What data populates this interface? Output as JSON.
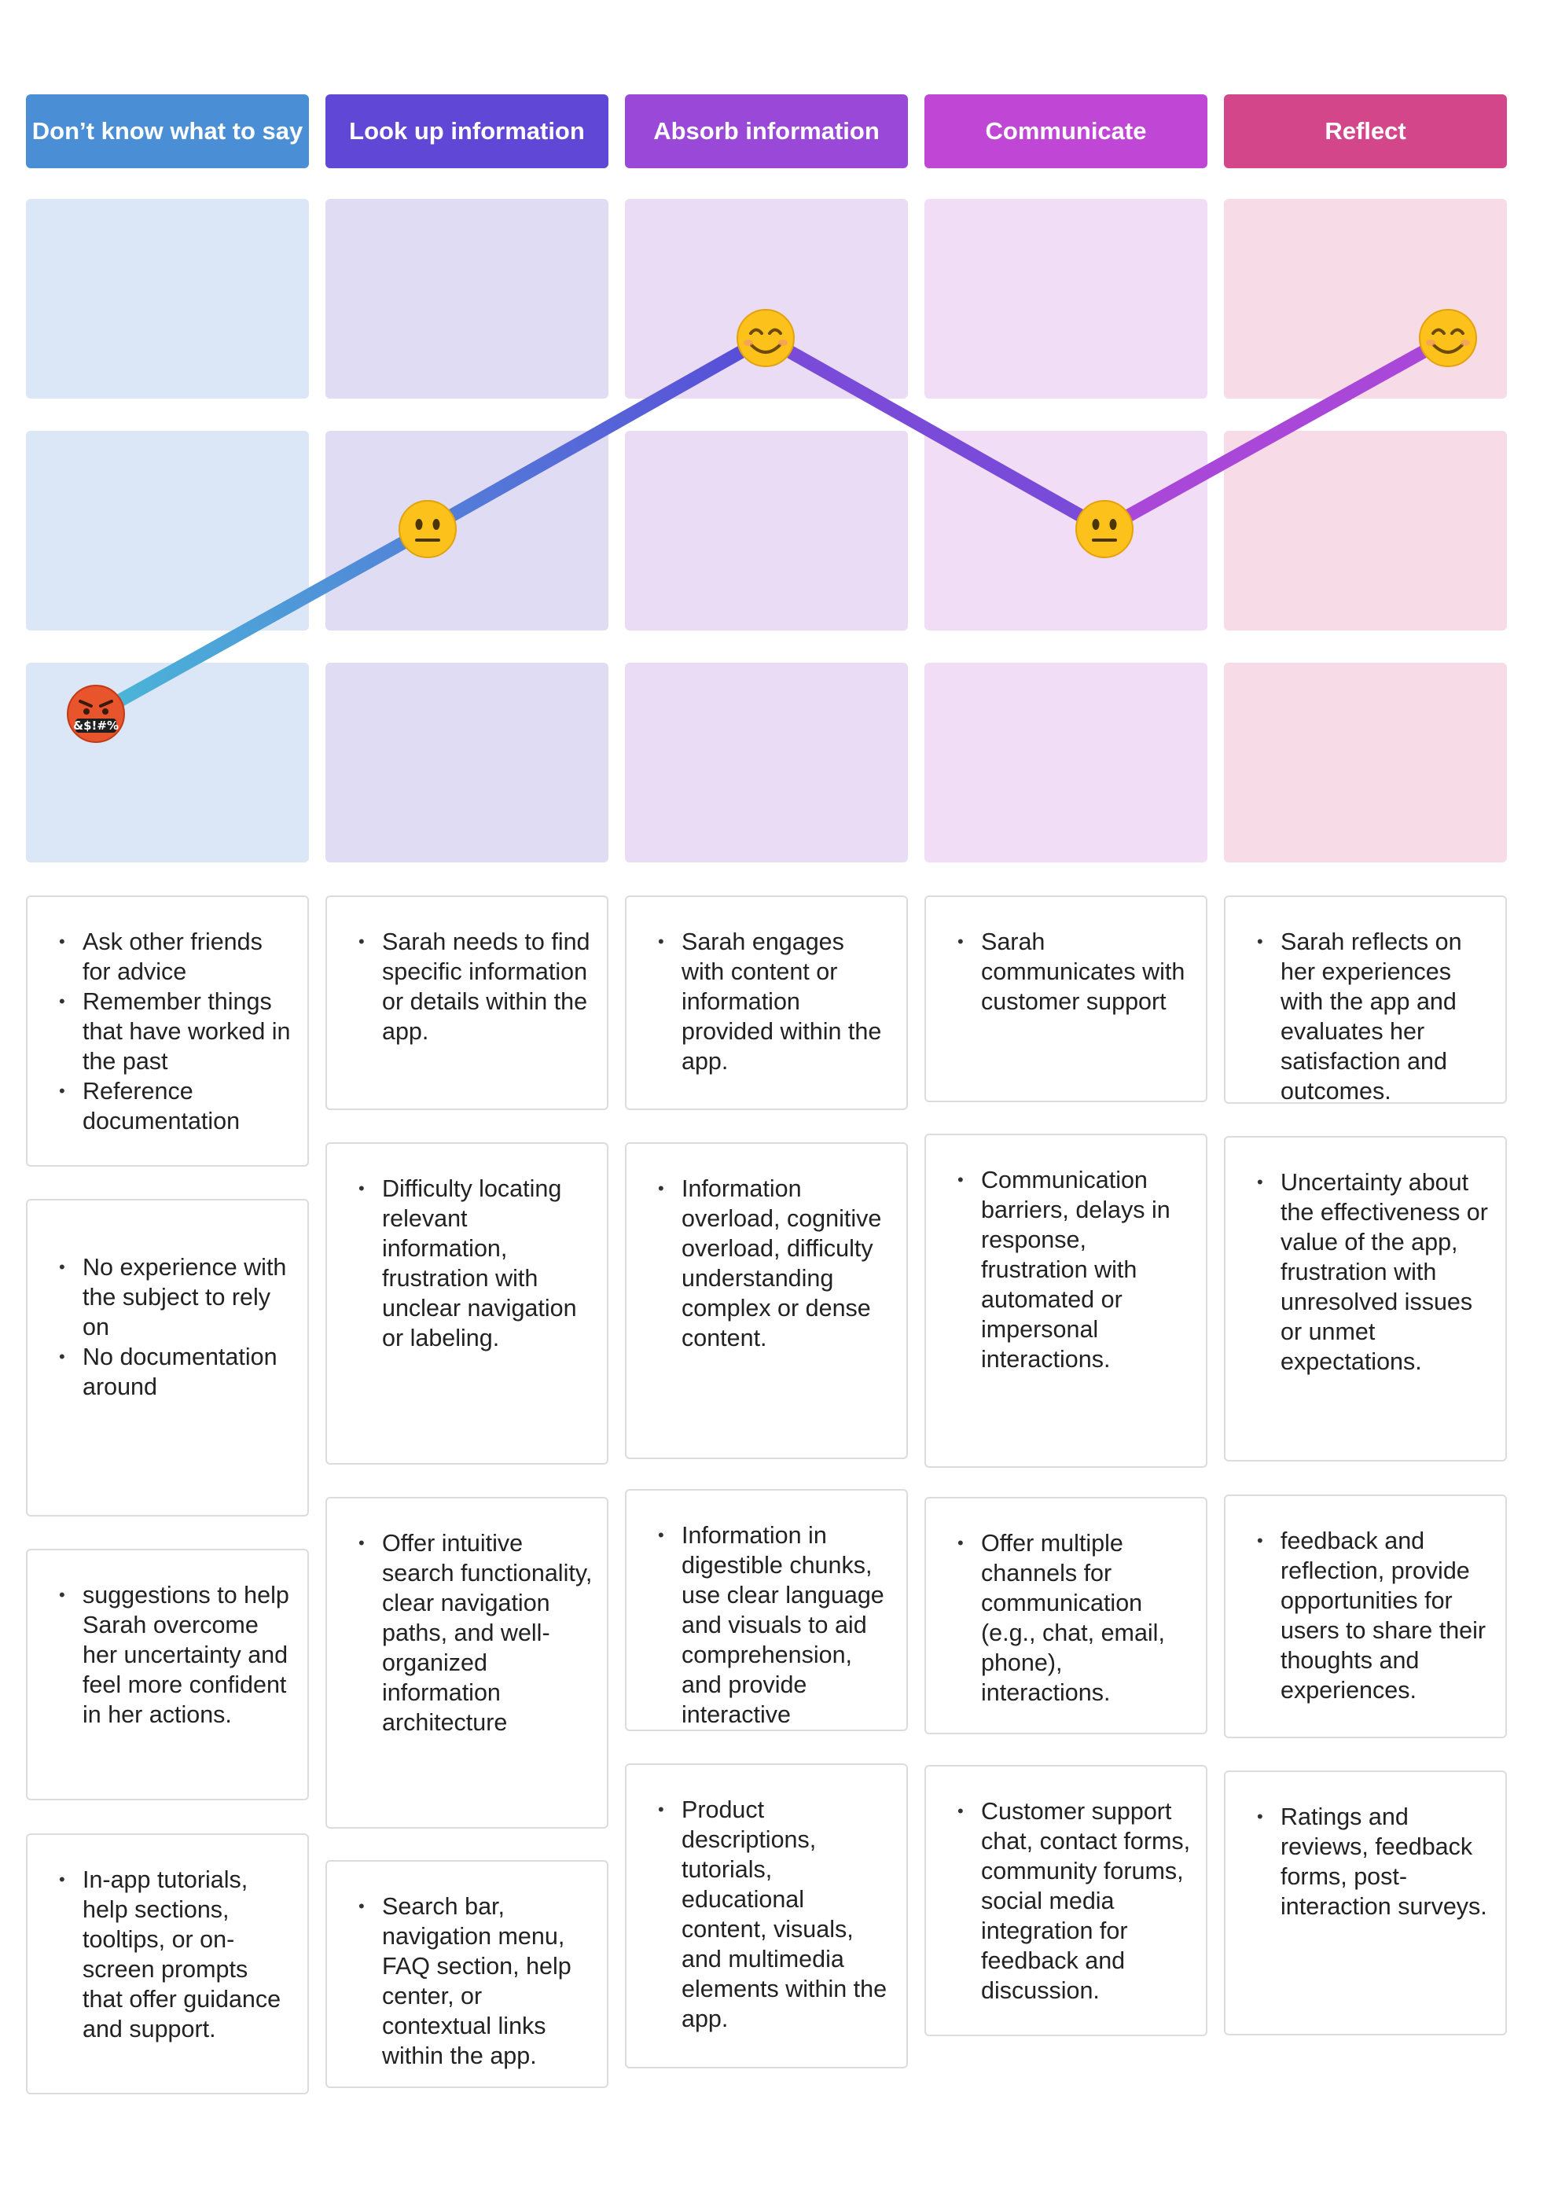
{
  "stages": [
    {
      "label": "Don’t know what to say",
      "color": "#4a8fd6",
      "zone_color": "#dbe6f6"
    },
    {
      "label": "Look up information",
      "color": "#6147d6",
      "zone_color": "#e0dcf4"
    },
    {
      "label": "Absorb information",
      "color": "#9a48d8",
      "zone_color": "#e9dcf4"
    },
    {
      "label": "Communicate",
      "color": "#c046d6",
      "zone_color": "#f2ddf6"
    },
    {
      "label": "Reflect",
      "color": "#d3468a",
      "zone_color": "#f7dce8"
    }
  ],
  "emotion_curve": {
    "levels": [
      "positive",
      "neutral",
      "negative"
    ],
    "points": [
      {
        "stage": 0,
        "level": "negative",
        "emoji": "🤬",
        "icon": "swearing-face-icon"
      },
      {
        "stage": 1,
        "level": "neutral",
        "emoji": "😐",
        "icon": "neutral-face-icon"
      },
      {
        "stage": 2,
        "level": "positive",
        "emoji": "😊",
        "icon": "smiling-face-icon"
      },
      {
        "stage": 3,
        "level": "neutral",
        "emoji": "😐",
        "icon": "neutral-face-icon"
      },
      {
        "stage": 4,
        "level": "positive",
        "emoji": "😊",
        "icon": "smiling-face-icon"
      }
    ],
    "line_colors": [
      "#4ab8d8",
      "#4a78d6",
      "#5a4ad8",
      "#7a4ad8",
      "#a948d8"
    ]
  },
  "columns": [
    {
      "cards": [
        {
          "items": [
            "Ask other friends for advice",
            "Remember things that have worked in the past",
            "Reference documentation"
          ]
        },
        {
          "items": [
            "No experience with the subject to rely on",
            "No documentation around"
          ]
        },
        {
          "items": [
            "suggestions to help Sarah overcome her uncertainty and feel more confident in her actions."
          ]
        },
        {
          "items": [
            "In-app tutorials, help sections, tooltips, or on-screen prompts that offer guidance and support."
          ]
        }
      ]
    },
    {
      "cards": [
        {
          "items": [
            "Sarah needs to find specific information or details within the app."
          ]
        },
        {
          "items": [
            "Difficulty locating relevant information, frustration with unclear navigation or labeling."
          ]
        },
        {
          "items": [
            "Offer intuitive search functionality, clear navigation paths, and well-organized information architecture"
          ]
        },
        {
          "items": [
            "Search bar, navigation menu, FAQ section, help center, or contextual links within the app."
          ]
        }
      ]
    },
    {
      "cards": [
        {
          "items": [
            "Sarah engages with content or information provided within the app."
          ]
        },
        {
          "items": [
            "Information overload, cognitive overload, difficulty understanding complex or dense content."
          ]
        },
        {
          "items": [
            "Information in digestible chunks, use clear language and visuals to aid comprehension, and provide interactive"
          ]
        },
        {
          "items": [
            "Product descriptions, tutorials, educational content, visuals, and multimedia elements within the app."
          ]
        }
      ]
    },
    {
      "cards": [
        {
          "items": [
            "Sarah communicates with  customer support"
          ]
        },
        {
          "items": [
            "Communication barriers, delays in response, frustration with automated or impersonal interactions."
          ]
        },
        {
          "items": [
            "Offer multiple channels for communication (e.g., chat, email, phone), interactions."
          ]
        },
        {
          "items": [
            "Customer support chat, contact forms, community forums, social media integration for feedback and discussion."
          ]
        }
      ]
    },
    {
      "cards": [
        {
          "items": [
            "Sarah reflects on her experiences with the app and evaluates her satisfaction and outcomes."
          ]
        },
        {
          "items": [
            "Uncertainty about the effectiveness or value of the app, frustration with unresolved issues or unmet expectations."
          ]
        },
        {
          "items": [
            "feedback and reflection, provide opportunities for users to share their thoughts and experiences."
          ]
        },
        {
          "items": [
            "Ratings and reviews, feedback forms, post-interaction surveys."
          ]
        }
      ]
    }
  ]
}
